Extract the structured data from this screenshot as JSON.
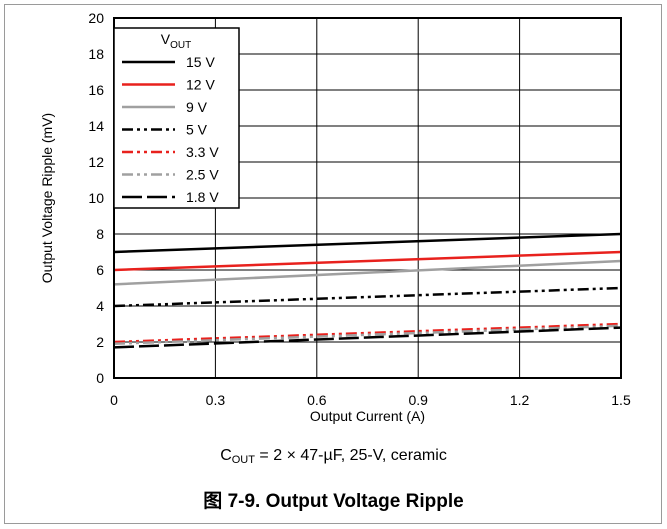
{
  "chart_data": {
    "type": "line",
    "xlabel": "Output Current (A)",
    "ylabel": "Output Voltage Ripple (mV)",
    "xlim": [
      0,
      1.5
    ],
    "ylim": [
      0,
      20
    ],
    "x_ticks": [
      "0",
      "0.3",
      "0.6",
      "0.9",
      "1.2",
      "1.5"
    ],
    "y_ticks": [
      "0",
      "2",
      "4",
      "6",
      "8",
      "10",
      "12",
      "14",
      "16",
      "18",
      "20"
    ],
    "grid": true,
    "legend_title_main": "V",
    "legend_title_sub": "OUT",
    "legend_position": "top-left",
    "series": [
      {
        "name": "15 V",
        "color": "#000000",
        "dash": "solid",
        "x": [
          0,
          1.5
        ],
        "y": [
          7.0,
          8.0
        ]
      },
      {
        "name": "12 V",
        "color": "#e8211d",
        "dash": "solid",
        "x": [
          0,
          1.5
        ],
        "y": [
          6.0,
          7.0
        ]
      },
      {
        "name": "9 V",
        "color": "#a0a0a0",
        "dash": "solid",
        "x": [
          0,
          1.5
        ],
        "y": [
          5.2,
          6.5
        ]
      },
      {
        "name": "5 V",
        "color": "#000000",
        "dash": "dash-dot-dot",
        "x": [
          0,
          1.5
        ],
        "y": [
          4.0,
          5.0
        ]
      },
      {
        "name": "3.3 V",
        "color": "#e8211d",
        "dash": "dash-dot-dot",
        "x": [
          0,
          1.5
        ],
        "y": [
          2.0,
          3.0
        ]
      },
      {
        "name": "2.5 V",
        "color": "#a0a0a0",
        "dash": "dash-dot-dot",
        "x": [
          0,
          1.5
        ],
        "y": [
          1.9,
          2.9
        ]
      },
      {
        "name": "1.8 V",
        "color": "#000000",
        "dash": "long-dash",
        "x": [
          0,
          1.5
        ],
        "y": [
          1.7,
          2.8
        ]
      }
    ]
  },
  "note": {
    "prefix": "C",
    "sub": "OUT",
    "suffix": " = 2 × 47-µF, 25-V, ceramic"
  },
  "caption": "图 7-9. Output Voltage Ripple"
}
